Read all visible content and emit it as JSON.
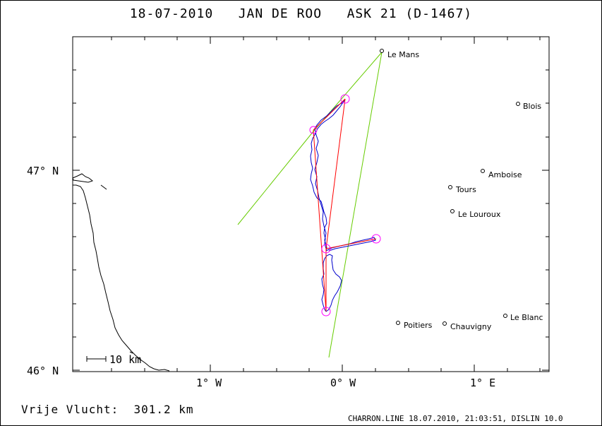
{
  "title": "18-07-2010   JAN DE ROO   ASK 21 (D-1467)",
  "footer": {
    "distance": "Vrije Vlucht:  301.2 km",
    "info": "CHARRON.LINE 18.07.2010, 21:03:51, DISLIN 10.0"
  },
  "scale_bar": {
    "label": "10 km"
  },
  "axes": {
    "x_labels": [
      "1° W",
      "0° W",
      "1° E"
    ],
    "y_labels": [
      "47° N",
      "46° N"
    ]
  },
  "cities": [
    {
      "name": "Le Mans"
    },
    {
      "name": "Blois"
    },
    {
      "name": "Amboise"
    },
    {
      "name": "Tours"
    },
    {
      "name": "Le Louroux"
    },
    {
      "name": "Le Blanc"
    },
    {
      "name": "Poitiers"
    },
    {
      "name": "Chauvigny"
    }
  ],
  "colors": {
    "track": "#0000cc",
    "task_line": "#ff0000",
    "sector_line": "#66cc00",
    "turnpoint": "#ff00ff",
    "coast": "#000000"
  }
}
